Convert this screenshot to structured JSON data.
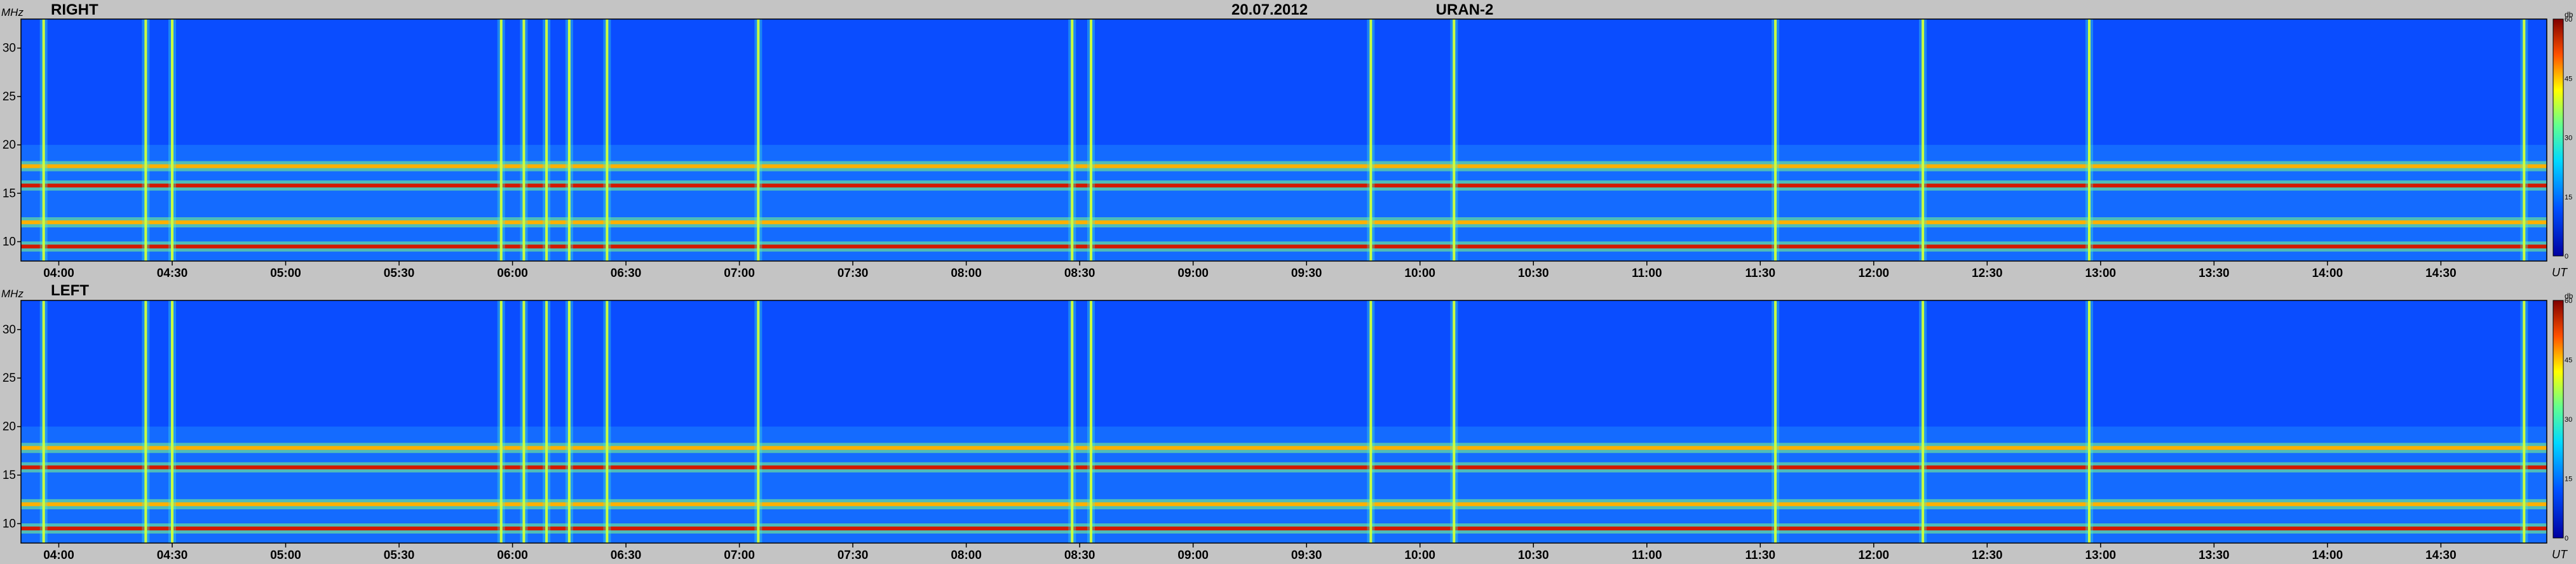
{
  "header": {
    "date": "20.07.2012",
    "station": "URAN-2"
  },
  "chart_data": [
    {
      "type": "heatmap",
      "panel": "RIGHT",
      "title": "RIGHT",
      "ylabel": "MHz",
      "xlabel": "UT",
      "ylim": [
        8,
        33
      ],
      "yticks": [
        10,
        15,
        20,
        25,
        30
      ],
      "xlim": [
        "03:50",
        "14:58"
      ],
      "xticks": [
        "04:00",
        "04:30",
        "05:00",
        "05:30",
        "06:00",
        "06:30",
        "07:00",
        "07:30",
        "08:00",
        "08:30",
        "09:00",
        "09:30",
        "10:00",
        "10:30",
        "11:00",
        "11:30",
        "12:00",
        "12:30",
        "13:00",
        "13:30",
        "14:00",
        "14:30"
      ],
      "colorbar": {
        "label": "db",
        "range": [
          0,
          60
        ],
        "ticks": [
          0,
          15,
          30,
          45,
          60
        ]
      },
      "freq_bands_mhz": [
        9.5,
        12.0,
        15.8,
        17.8
      ],
      "bursts_ut": [
        "03:56",
        "04:23",
        "04:30",
        "05:57",
        "06:03",
        "06:09",
        "06:15",
        "06:25",
        "07:05",
        "08:28",
        "08:33",
        "09:47",
        "10:09",
        "11:34",
        "12:13",
        "12:57",
        "14:52"
      ]
    },
    {
      "type": "heatmap",
      "panel": "LEFT",
      "title": "LEFT",
      "ylabel": "MHz",
      "xlabel": "UT",
      "ylim": [
        8,
        33
      ],
      "yticks": [
        10,
        15,
        20,
        25,
        30
      ],
      "xlim": [
        "03:50",
        "14:58"
      ],
      "xticks": [
        "04:00",
        "04:30",
        "05:00",
        "05:30",
        "06:00",
        "06:30",
        "07:00",
        "07:30",
        "08:00",
        "08:30",
        "09:00",
        "09:30",
        "10:00",
        "10:30",
        "11:00",
        "11:30",
        "12:00",
        "12:30",
        "13:00",
        "13:30",
        "14:00",
        "14:30"
      ],
      "colorbar": {
        "label": "db",
        "range": [
          0,
          60
        ],
        "ticks": [
          0,
          15,
          30,
          45,
          60
        ]
      },
      "freq_bands_mhz": [
        9.5,
        12.0,
        15.8,
        17.8
      ],
      "bursts_ut": [
        "03:56",
        "04:23",
        "04:30",
        "05:57",
        "06:03",
        "06:09",
        "06:15",
        "06:25",
        "07:05",
        "08:28",
        "08:33",
        "09:47",
        "10:09",
        "11:34",
        "12:13",
        "12:57",
        "14:52"
      ]
    }
  ]
}
